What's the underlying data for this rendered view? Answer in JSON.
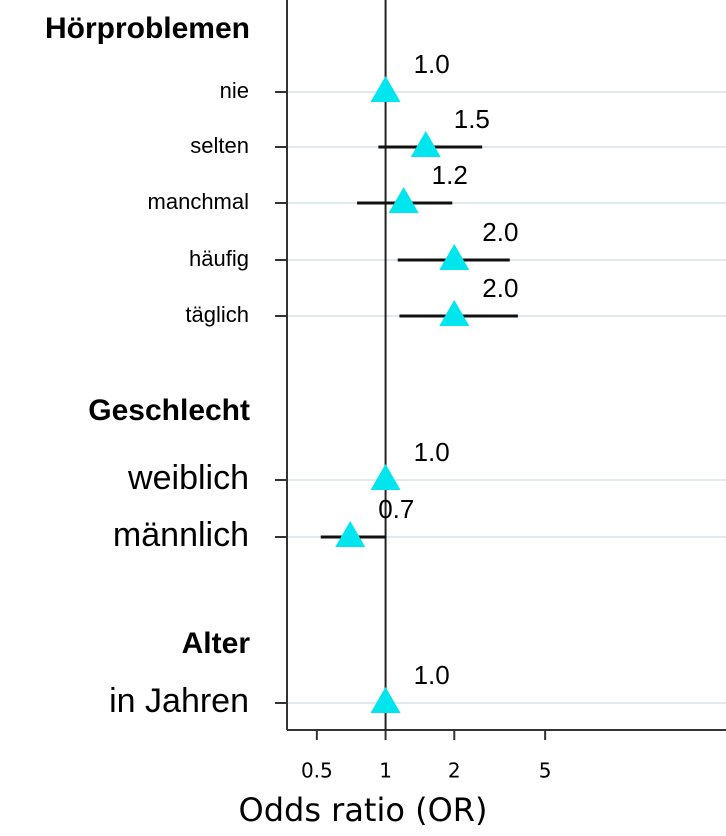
{
  "chart_data": {
    "type": "forest",
    "xlabel": "Odds ratio (OR)",
    "xscale": "log",
    "xlim": [
      0.37,
      31
    ],
    "xticks": [
      0.5,
      1,
      2,
      5
    ],
    "grid": true,
    "color": "#00e5ee",
    "groups": [
      {
        "name": "Hörproblemen",
        "categories": [
          "nie",
          "selten",
          "manchmal",
          "häufig",
          "täglich"
        ],
        "values": [
          1.0,
          1.5,
          1.2,
          2.0,
          2.0
        ],
        "value_labels": [
          "1.0",
          "1.5",
          "1.2",
          "2.0",
          "2.0"
        ],
        "ci_low": [
          null,
          0.93,
          0.75,
          1.13,
          1.15
        ],
        "ci_high": [
          null,
          2.65,
          1.96,
          3.5,
          3.8
        ]
      },
      {
        "name": "Geschlecht",
        "categories": [
          "weiblich",
          "männlich"
        ],
        "values": [
          1.0,
          0.7
        ],
        "value_labels": [
          "1.0",
          "0.7"
        ],
        "ci_low": [
          null,
          0.52
        ],
        "ci_high": [
          null,
          1.0
        ]
      },
      {
        "name": "Alter",
        "categories": [
          "in Jahren"
        ],
        "values": [
          1.0
        ],
        "value_labels": [
          "1.0"
        ],
        "ci_low": [
          null
        ],
        "ci_high": [
          null
        ]
      }
    ]
  }
}
